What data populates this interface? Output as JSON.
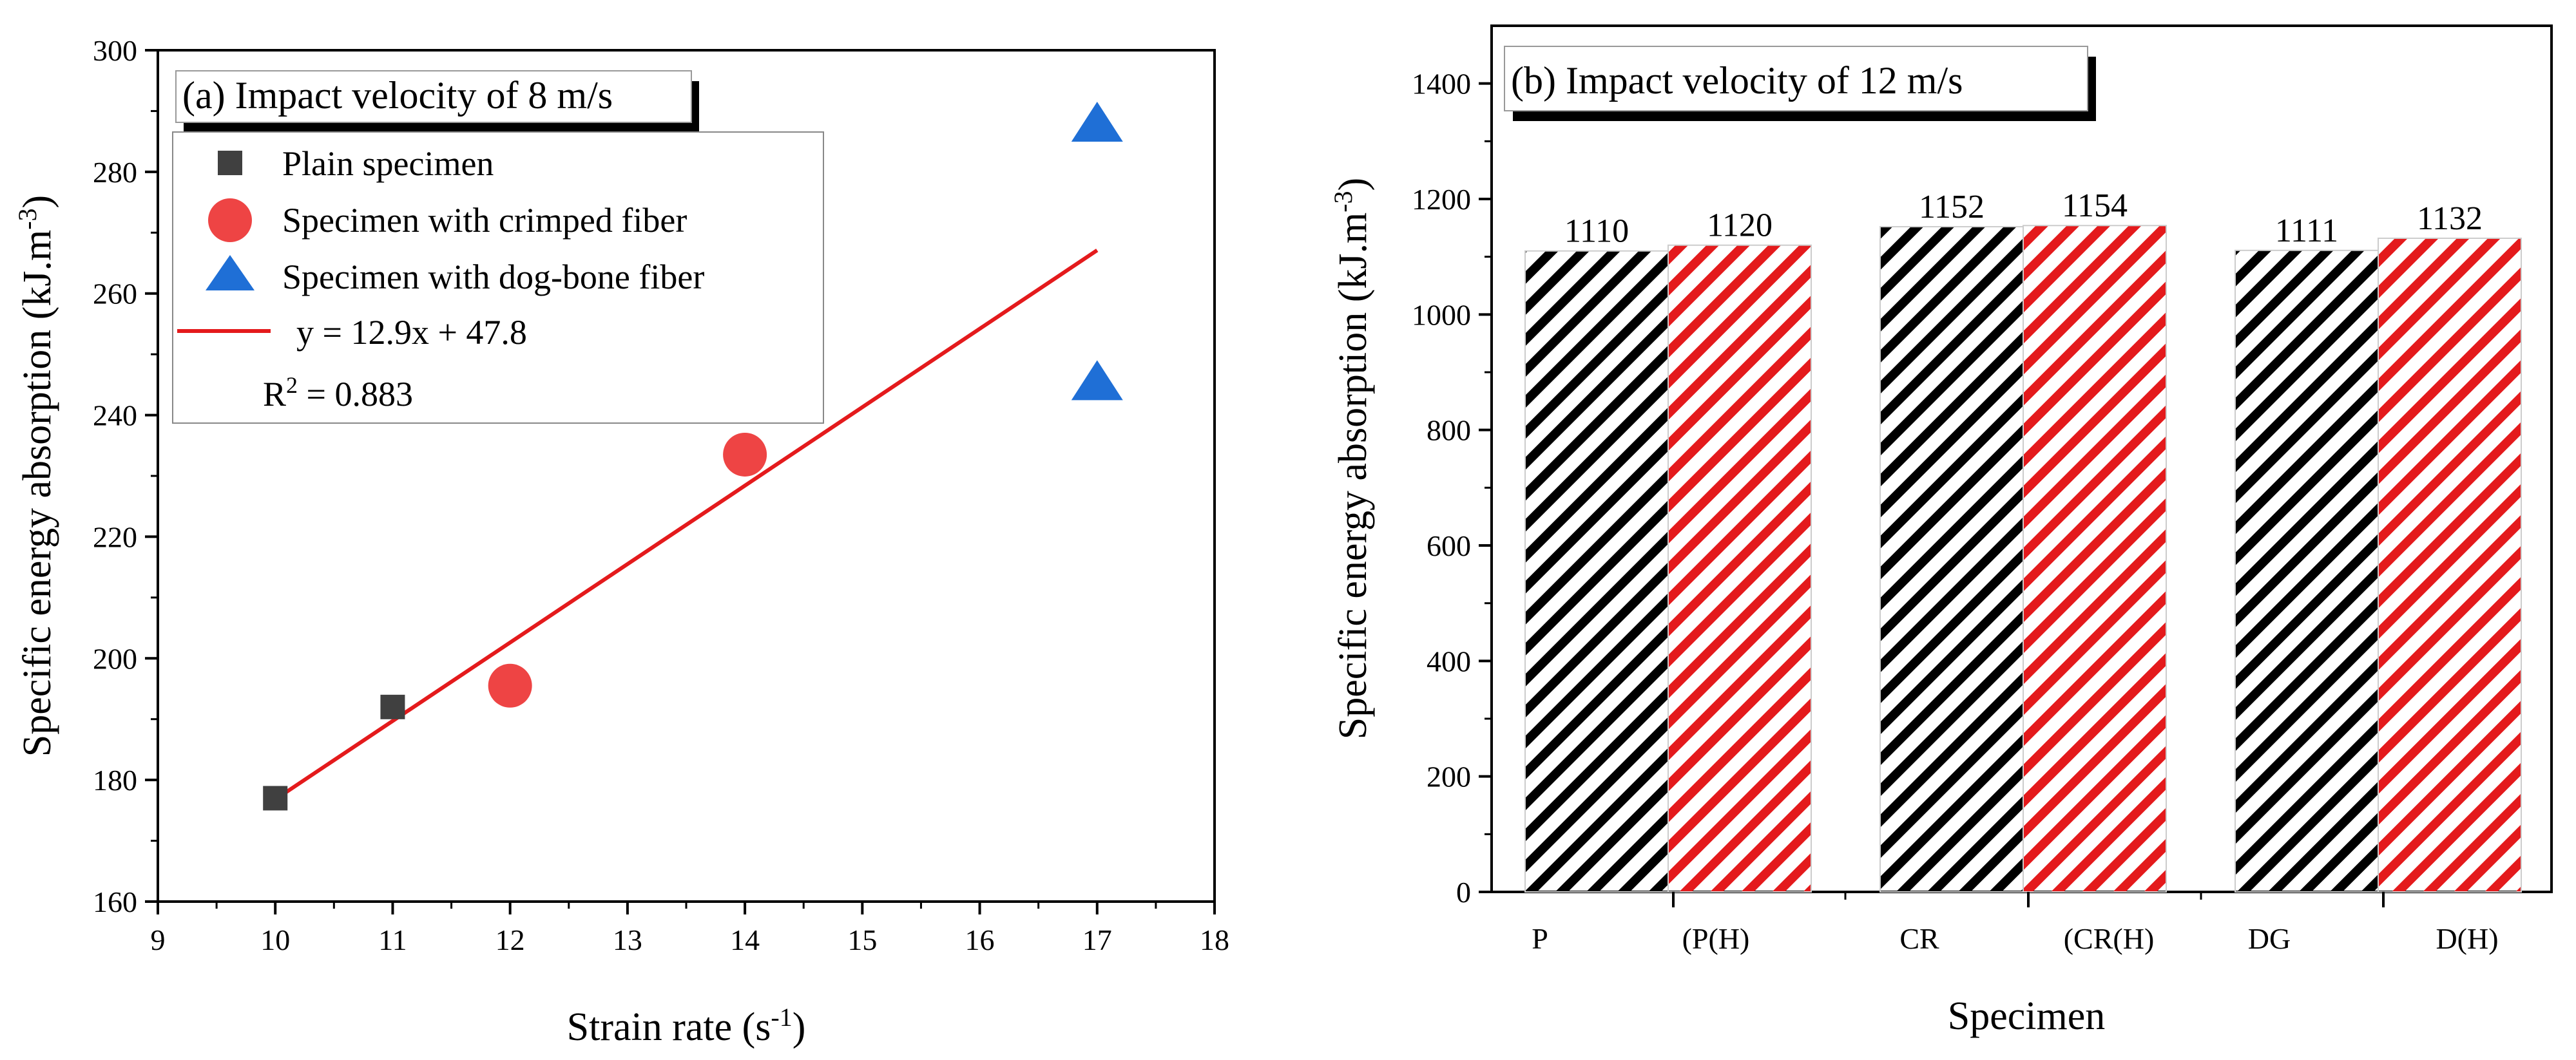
{
  "chart_data": [
    {
      "panel": "(a)",
      "type": "scatter",
      "title": "(a) Impact velocity of 8 m/s",
      "xlabel": "Strain rate (s",
      "xlabel_sup": "-1",
      "xlabel_end": ")",
      "ylabel": "Specific energy absorption (kJ.m",
      "ylabel_sup": "-3",
      "ylabel_end": ")",
      "xlim": [
        9,
        18
      ],
      "ylim": [
        160,
        300
      ],
      "xticks": [
        9,
        10,
        11,
        12,
        13,
        14,
        15,
        16,
        17,
        18
      ],
      "yticks": [
        160,
        180,
        200,
        220,
        240,
        260,
        280,
        300
      ],
      "grid": false,
      "legend_position": "top-left",
      "series": [
        {
          "name": "Plain specimen",
          "marker": "square",
          "color": "#404040",
          "points": [
            [
              10,
              177
            ],
            [
              11,
              192
            ]
          ]
        },
        {
          "name": "Specimen with crimped fiber",
          "marker": "circle",
          "color": "#ee4444",
          "points": [
            [
              12,
              195.5
            ],
            [
              14,
              233.5
            ]
          ]
        },
        {
          "name": "Specimen with dog-bone fiber",
          "marker": "triangle",
          "color": "#1f6fd6",
          "points": [
            [
              17,
              287.5
            ],
            [
              17,
              245
            ]
          ]
        }
      ],
      "fit": {
        "name": "y = 12.9x + 47.8",
        "slope": 12.9,
        "intercept": 47.8,
        "x_range": [
          10,
          17
        ],
        "color": "#e41a1c",
        "r2_prefix": "R",
        "r2_sup": "2",
        "r2_value": " = 0.883"
      }
    },
    {
      "panel": "(b)",
      "type": "bar",
      "title": "(b) Impact velocity of 12 m/s",
      "xlabel": "Specimen",
      "ylabel": "Specific energy absorption (kJ.m",
      "ylabel_sup": "-3",
      "ylabel_end": ")",
      "ylim": [
        0,
        1500
      ],
      "yticks": [
        0,
        200,
        400,
        600,
        800,
        1000,
        1200,
        1400
      ],
      "grid": false,
      "categories": [
        "P",
        "(P(H)",
        "CR",
        "(CR(H)",
        "DG",
        "D(H)"
      ],
      "values": [
        1110,
        1120,
        1152,
        1154,
        1111,
        1132
      ],
      "colors": [
        "#000000",
        "#e41a1c",
        "#000000",
        "#e41a1c",
        "#000000",
        "#e41a1c"
      ],
      "pattern": "diagonal-hatch"
    }
  ]
}
